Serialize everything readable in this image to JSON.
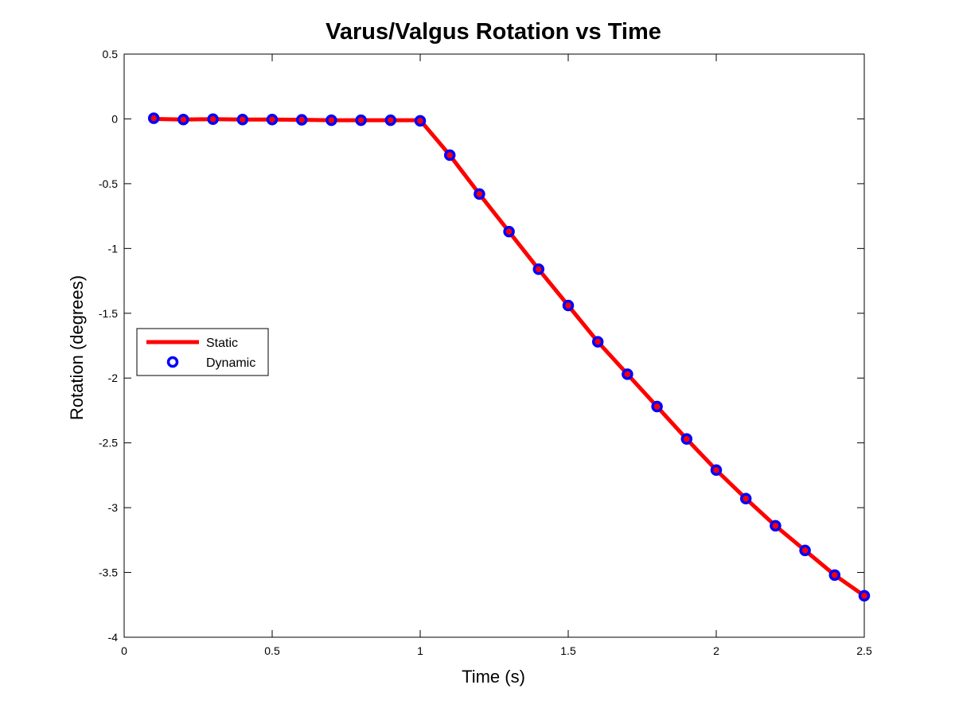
{
  "chart_data": {
    "type": "line",
    "title": "Varus/Valgus Rotation vs Time",
    "xlabel": "Time (s)",
    "ylabel": "Rotation (degrees)",
    "xlim": [
      0,
      2.5
    ],
    "ylim": [
      -4,
      0.5
    ],
    "xticks": [
      0,
      0.5,
      1,
      1.5,
      2,
      2.5
    ],
    "xtick_labels": [
      "0",
      "0.5",
      "1",
      "1.5",
      "2",
      "2.5"
    ],
    "yticks": [
      0.5,
      0,
      -0.5,
      -1,
      -1.5,
      -2,
      -2.5,
      -3,
      -3.5,
      -4
    ],
    "ytick_labels": [
      "0.5",
      "0",
      "-0.5",
      "-1",
      "-1.5",
      "-2",
      "-2.5",
      "-3",
      "-3.5",
      "-4"
    ],
    "grid": false,
    "legend_position": "center-left",
    "x": [
      0.1,
      0.2,
      0.3,
      0.4,
      0.5,
      0.6,
      0.7,
      0.8,
      0.9,
      1.0,
      1.1,
      1.2,
      1.3,
      1.4,
      1.5,
      1.6,
      1.7,
      1.8,
      1.9,
      2.0,
      2.1,
      2.2,
      2.3,
      2.4,
      2.5
    ],
    "series": [
      {
        "name": "Static",
        "style": "line",
        "color": "#ff0000",
        "values": [
          0.0,
          -0.005,
          -0.002,
          -0.005,
          -0.005,
          -0.007,
          -0.01,
          -0.01,
          -0.01,
          -0.01,
          -0.28,
          -0.58,
          -0.87,
          -1.16,
          -1.44,
          -1.72,
          -1.97,
          -2.22,
          -2.47,
          -2.71,
          -2.93,
          -3.14,
          -3.33,
          -3.52,
          -3.68
        ]
      },
      {
        "name": "Dynamic",
        "style": "markers",
        "color": "#0000ff",
        "marker_fill": "#ff0000",
        "values": [
          0.005,
          -0.005,
          -0.002,
          -0.005,
          -0.005,
          -0.007,
          -0.01,
          -0.01,
          -0.01,
          -0.015,
          -0.28,
          -0.58,
          -0.87,
          -1.16,
          -1.44,
          -1.72,
          -1.97,
          -2.22,
          -2.47,
          -2.71,
          -2.93,
          -3.14,
          -3.33,
          -3.52,
          -3.68
        ]
      }
    ]
  }
}
